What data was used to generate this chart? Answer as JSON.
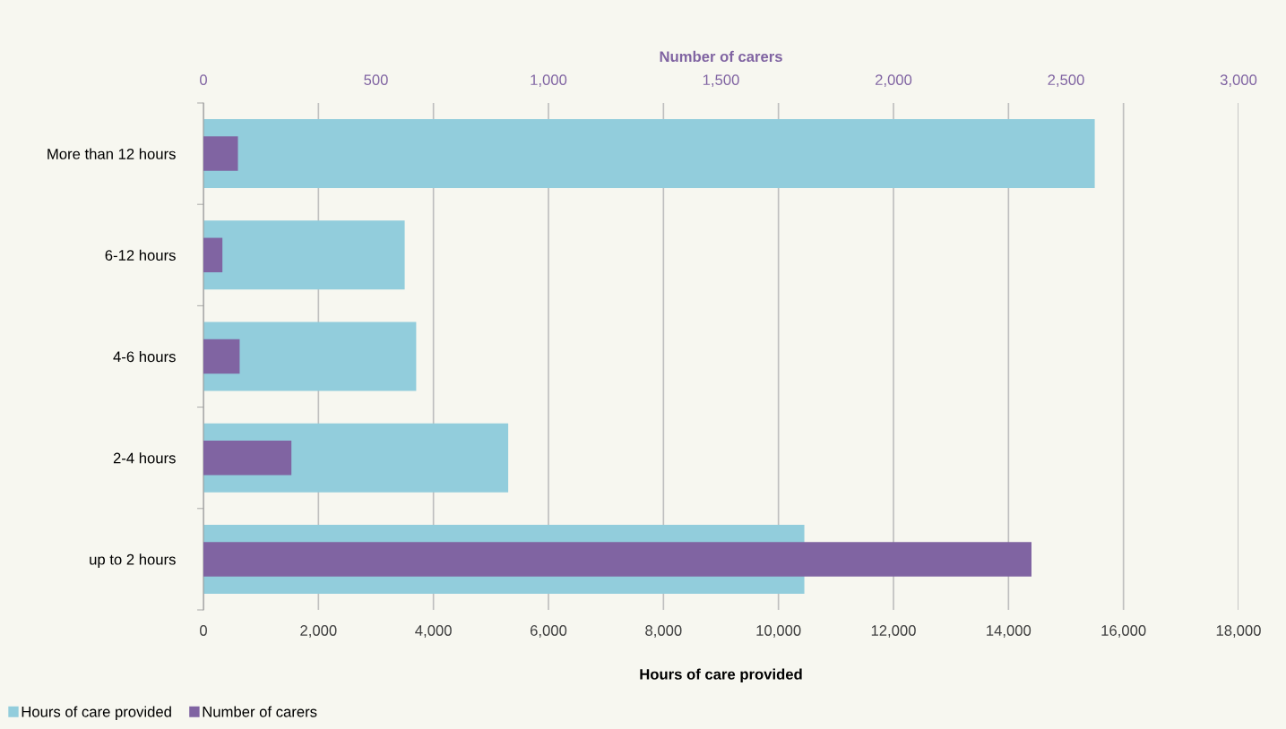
{
  "chart_data": {
    "type": "bar",
    "orientation": "horizontal",
    "xlabel": "Hours of care provided",
    "x2label": "Number of carers",
    "categories": [
      "More than 12 hours",
      "6-12 hours",
      "4-6 hours",
      "2-4 hours",
      "up to 2 hours"
    ],
    "series": [
      {
        "name": "Hours of care provided",
        "color": "#92cddc",
        "values": [
          15500,
          3500,
          3700,
          5300,
          10450
        ]
      },
      {
        "name": "Number of carers",
        "color": "#8064a2",
        "axis": "x2",
        "values": [
          100,
          55,
          105,
          255,
          2400
        ]
      }
    ],
    "xlim": [
      0,
      18000
    ],
    "xticks": [
      {
        "value": 0,
        "label": "0"
      },
      {
        "value": 2000,
        "label": "2,000"
      },
      {
        "value": 4000,
        "label": "4,000"
      },
      {
        "value": 6000,
        "label": "6,000"
      },
      {
        "value": 8000,
        "label": "8,000"
      },
      {
        "value": 10000,
        "label": "10,000"
      },
      {
        "value": 12000,
        "label": "12,000"
      },
      {
        "value": 14000,
        "label": "14,000"
      },
      {
        "value": 16000,
        "label": "16,000"
      },
      {
        "value": 18000,
        "label": "18,000"
      }
    ],
    "x2lim": [
      0,
      3000
    ],
    "x2ticks": [
      {
        "value": 0,
        "label": "0"
      },
      {
        "value": 500,
        "label": "500"
      },
      {
        "value": 1000,
        "label": "1,000"
      },
      {
        "value": 1500,
        "label": "1,500"
      },
      {
        "value": 2000,
        "label": "2,000"
      },
      {
        "value": 2500,
        "label": "2,500"
      },
      {
        "value": 3000,
        "label": "3,000"
      }
    ],
    "grid": "x",
    "legend": "bottom left"
  }
}
